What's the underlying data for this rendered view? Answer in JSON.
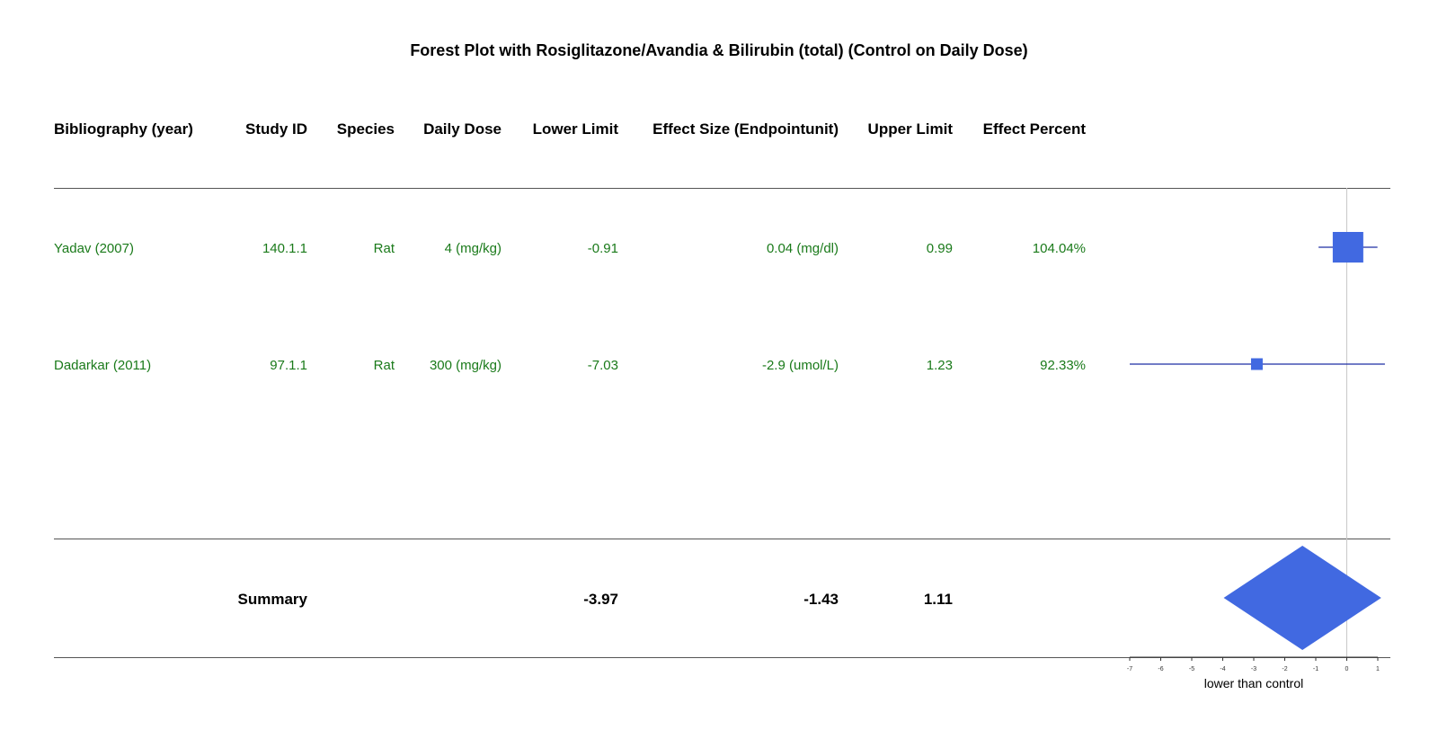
{
  "chart_data": {
    "type": "forest",
    "title": "Forest Plot with Rosiglitazone/Avandia & Bilirubin (total) (Control on Daily Dose)",
    "columns": [
      "Bibliography (year)",
      "Study ID",
      "Species",
      "Daily Dose",
      "Lower Limit",
      "Effect Size (Endpointunit)",
      "Upper Limit",
      "Effect Percent"
    ],
    "studies": [
      {
        "bibliography": "Yadav (2007)",
        "study_id": "140.1.1",
        "species": "Rat",
        "daily_dose": "4 (mg/kg)",
        "lower": -0.91,
        "lower_label": "-0.91",
        "effect": 0.04,
        "effect_label": "0.04 (mg/dl)",
        "upper": 0.99,
        "upper_label": "0.99",
        "effect_percent": "104.04%"
      },
      {
        "bibliography": "Dadarkar (2011)",
        "study_id": "97.1.1",
        "species": "Rat",
        "daily_dose": "300 (mg/kg)",
        "lower": -7.03,
        "lower_label": "-7.03",
        "effect": -2.9,
        "effect_label": "-2.9 (umol/L)",
        "upper": 1.23,
        "upper_label": "1.23",
        "effect_percent": "92.33%"
      }
    ],
    "summary": {
      "label": "Summary",
      "lower": -3.97,
      "lower_label": "-3.97",
      "effect": -1.43,
      "effect_label": "-1.43",
      "upper": 1.11,
      "upper_label": "1.11"
    },
    "x_ticks": [
      -7,
      -6,
      -5,
      -4,
      -3,
      -2,
      -1,
      0,
      1
    ],
    "xlim": [
      -7,
      1.3
    ],
    "reference_line": 0,
    "xlabel": "lower than control",
    "colors": {
      "marker": "#4169e1",
      "line": "#1f2ea3",
      "text_rows": "#1a7a1a",
      "reference": "#c8c8c8"
    }
  }
}
